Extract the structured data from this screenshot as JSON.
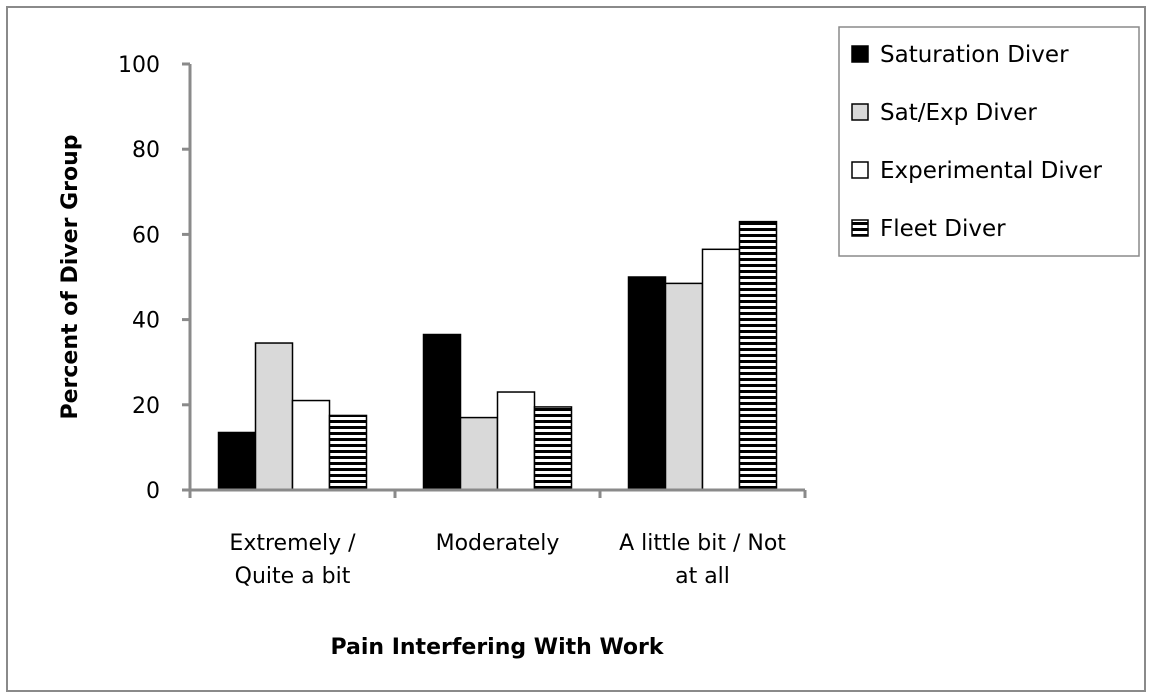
{
  "chart_data": {
    "type": "bar",
    "categories": [
      "Extremely / Quite a bit",
      "Moderately",
      "A little bit / Not at all"
    ],
    "category_label_lines": [
      [
        "Extremely /",
        "Quite a bit"
      ],
      [
        "Moderately"
      ],
      [
        "A little bit / Not",
        "at all"
      ]
    ],
    "series": [
      {
        "name": "Saturation Diver",
        "values": [
          13.5,
          36.5,
          50
        ],
        "fill": "#000000",
        "pattern": "solid"
      },
      {
        "name": "Sat/Exp Diver",
        "values": [
          34.5,
          17,
          48.5
        ],
        "fill": "#d9d9d9",
        "pattern": "solid"
      },
      {
        "name": "Experimental Diver",
        "values": [
          21,
          23,
          56.5
        ],
        "fill": "#ffffff",
        "pattern": "solid"
      },
      {
        "name": "Fleet Diver",
        "values": [
          17.5,
          19.5,
          63
        ],
        "fill": "#ffffff",
        "pattern": "horizontal-stripes"
      }
    ],
    "xlabel": "Pain Interfering With Work",
    "ylabel": "Percent of Diver Group",
    "ylim": [
      0,
      100
    ],
    "yticks": [
      0,
      20,
      40,
      60,
      80,
      100
    ],
    "grid": false,
    "legend_position": "top-right"
  }
}
